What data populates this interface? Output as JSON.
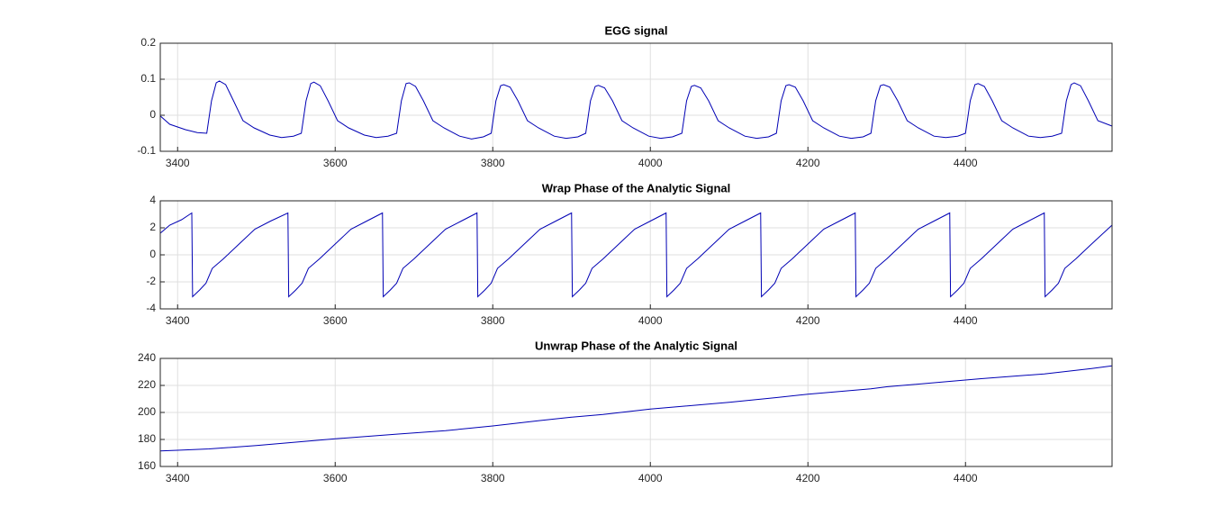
{
  "chart_data": [
    {
      "type": "line",
      "title": "EGG signal",
      "color": "#0000b4",
      "grid": true,
      "xlim": [
        3378,
        4586
      ],
      "xticks": [
        3400,
        3600,
        3800,
        4000,
        4200,
        4400
      ],
      "ylim": [
        -0.1,
        0.2
      ],
      "yticks": [
        -0.1,
        0,
        0.1,
        0.2
      ],
      "x": [
        3378,
        3390,
        3410,
        3425,
        3437,
        3443,
        3449,
        3453,
        3461,
        3471,
        3483,
        3497,
        3517,
        3532,
        3547,
        3557,
        3563,
        3569,
        3573,
        3581,
        3591,
        3603,
        3617,
        3637,
        3652,
        3667,
        3678,
        3684,
        3690,
        3694,
        3702,
        3712,
        3724,
        3738,
        3758,
        3773,
        3788,
        3798,
        3804,
        3810,
        3814,
        3822,
        3832,
        3844,
        3858,
        3878,
        3893,
        3908,
        3918,
        3924,
        3930,
        3934,
        3942,
        3952,
        3964,
        3978,
        3998,
        4013,
        4028,
        4040,
        4046,
        4052,
        4056,
        4064,
        4074,
        4086,
        4100,
        4120,
        4135,
        4150,
        4160,
        4166,
        4172,
        4176,
        4184,
        4194,
        4206,
        4220,
        4240,
        4255,
        4270,
        4280,
        4286,
        4292,
        4296,
        4304,
        4314,
        4326,
        4340,
        4360,
        4375,
        4390,
        4400,
        4406,
        4412,
        4416,
        4424,
        4434,
        4446,
        4460,
        4480,
        4495,
        4510,
        4522,
        4528,
        4534,
        4538,
        4546,
        4556,
        4568,
        4586
      ],
      "values": [
        -0.002,
        -0.025,
        -0.04,
        -0.048,
        -0.05,
        0.04,
        0.09,
        0.095,
        0.085,
        0.04,
        -0.015,
        -0.035,
        -0.055,
        -0.062,
        -0.058,
        -0.05,
        0.04,
        0.088,
        0.092,
        0.082,
        0.04,
        -0.015,
        -0.035,
        -0.055,
        -0.062,
        -0.058,
        -0.05,
        0.04,
        0.088,
        0.09,
        0.08,
        0.04,
        -0.015,
        -0.035,
        -0.058,
        -0.066,
        -0.06,
        -0.05,
        0.04,
        0.082,
        0.085,
        0.078,
        0.04,
        -0.015,
        -0.035,
        -0.058,
        -0.064,
        -0.06,
        -0.05,
        0.04,
        0.08,
        0.083,
        0.076,
        0.04,
        -0.015,
        -0.035,
        -0.058,
        -0.064,
        -0.06,
        -0.05,
        0.04,
        0.08,
        0.083,
        0.076,
        0.04,
        -0.015,
        -0.035,
        -0.058,
        -0.064,
        -0.06,
        -0.05,
        0.04,
        0.082,
        0.085,
        0.078,
        0.04,
        -0.015,
        -0.035,
        -0.058,
        -0.064,
        -0.06,
        -0.05,
        0.04,
        0.082,
        0.085,
        0.078,
        0.04,
        -0.015,
        -0.035,
        -0.058,
        -0.062,
        -0.058,
        -0.05,
        0.04,
        0.085,
        0.088,
        0.08,
        0.04,
        -0.015,
        -0.035,
        -0.058,
        -0.062,
        -0.058,
        -0.05,
        0.04,
        0.085,
        0.09,
        0.082,
        0.04,
        -0.015,
        -0.03
      ]
    },
    {
      "type": "line",
      "title": "Wrap Phase of the Analytic Signal",
      "color": "#0000b4",
      "grid": true,
      "xlim": [
        3378,
        4586
      ],
      "xticks": [
        3400,
        3600,
        3800,
        4000,
        4200,
        4400
      ],
      "ylim": [
        -4,
        4
      ],
      "yticks": [
        -4,
        -2,
        0,
        2,
        4
      ],
      "x": [
        3378,
        3390,
        3405,
        3418,
        3419,
        3428,
        3436,
        3444,
        3458,
        3478,
        3498,
        3518,
        3540,
        3541,
        3550,
        3558,
        3566,
        3580,
        3600,
        3620,
        3640,
        3660,
        3661,
        3670,
        3678,
        3686,
        3700,
        3720,
        3740,
        3760,
        3780,
        3781,
        3790,
        3798,
        3806,
        3820,
        3840,
        3860,
        3880,
        3900,
        3901,
        3910,
        3918,
        3926,
        3940,
        3960,
        3980,
        4000,
        4020,
        4021,
        4030,
        4038,
        4046,
        4060,
        4080,
        4100,
        4120,
        4140,
        4141,
        4150,
        4158,
        4166,
        4180,
        4200,
        4220,
        4240,
        4260,
        4261,
        4270,
        4278,
        4286,
        4300,
        4320,
        4340,
        4360,
        4380,
        4381,
        4390,
        4398,
        4406,
        4420,
        4440,
        4460,
        4480,
        4500,
        4501,
        4510,
        4518,
        4526,
        4540,
        4560,
        4586
      ],
      "values": [
        1.6,
        2.2,
        2.6,
        3.1,
        -3.1,
        -2.6,
        -2.1,
        -1.0,
        -0.3,
        0.8,
        1.9,
        2.5,
        3.1,
        -3.1,
        -2.6,
        -2.1,
        -1.0,
        -0.3,
        0.8,
        1.9,
        2.5,
        3.1,
        -3.1,
        -2.6,
        -2.1,
        -1.0,
        -0.3,
        0.8,
        1.9,
        2.5,
        3.1,
        -3.1,
        -2.6,
        -2.1,
        -1.0,
        -0.3,
        0.8,
        1.9,
        2.5,
        3.1,
        -3.1,
        -2.6,
        -2.1,
        -1.0,
        -0.3,
        0.8,
        1.9,
        2.5,
        3.1,
        -3.1,
        -2.6,
        -2.1,
        -1.0,
        -0.3,
        0.8,
        1.9,
        2.5,
        3.1,
        -3.1,
        -2.6,
        -2.1,
        -1.0,
        -0.3,
        0.8,
        1.9,
        2.5,
        3.1,
        -3.1,
        -2.6,
        -2.1,
        -1.0,
        -0.3,
        0.8,
        1.9,
        2.5,
        3.1,
        -3.1,
        -2.6,
        -2.1,
        -1.0,
        -0.3,
        0.8,
        1.9,
        2.5,
        3.1,
        -3.1,
        -2.6,
        -2.1,
        -1.0,
        -0.3,
        0.8,
        2.2
      ]
    },
    {
      "type": "line",
      "title": "Unwrap Phase of the Analytic Signal",
      "color": "#0000b4",
      "grid": true,
      "xlim": [
        3378,
        4586
      ],
      "xticks": [
        3400,
        3600,
        3800,
        4000,
        4200,
        4400
      ],
      "ylim": [
        160,
        240
      ],
      "yticks": [
        160,
        180,
        200,
        220,
        240
      ],
      "x": [
        3378,
        3400,
        3440,
        3500,
        3560,
        3600,
        3680,
        3740,
        3800,
        3860,
        3900,
        3940,
        4000,
        4040,
        4100,
        4160,
        4200,
        4280,
        4300,
        4380,
        4420,
        4500,
        4560,
        4586
      ],
      "values": [
        171.5,
        172,
        173,
        175.5,
        178.5,
        180.5,
        184,
        186.5,
        190,
        194,
        196.5,
        198.5,
        202.5,
        204.5,
        207.5,
        211,
        213.5,
        217.5,
        219,
        223,
        225,
        228.5,
        232.5,
        234.5
      ]
    }
  ]
}
